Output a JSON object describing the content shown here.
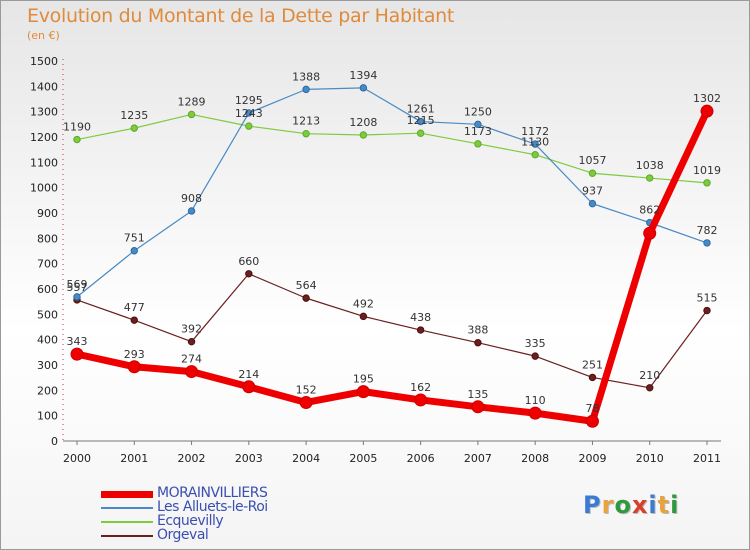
{
  "title": "Evolution du Montant de la Dette par Habitant",
  "subtitle": "(en €)",
  "logo": {
    "text": "Proxiti",
    "colors": [
      "#3a7bd5",
      "#e8a33d",
      "#2d9a3e",
      "#d8402b",
      "#3a7bd5",
      "#e8a33d",
      "#2d9a3e"
    ]
  },
  "chart_data": {
    "type": "line",
    "title": "Evolution du Montant de la Dette par Habitant",
    "ylabel": "(en €)",
    "x": [
      "2000",
      "2001",
      "2002",
      "2003",
      "2004",
      "2005",
      "2006",
      "2007",
      "2008",
      "2009",
      "2010",
      "2011"
    ],
    "ylim": [
      0,
      1500
    ],
    "yticks": [
      0,
      100,
      200,
      300,
      400,
      500,
      600,
      700,
      800,
      900,
      1000,
      1100,
      1200,
      1300,
      1400,
      1500
    ],
    "grid": false,
    "legend_position": "bottom-left",
    "series": [
      {
        "name": "MORAINVILLIERS",
        "color": "#ee0000",
        "values": [
          343,
          293,
          274,
          214,
          152,
          195,
          162,
          135,
          110,
          78,
          820,
          1302
        ],
        "labels": [
          "343",
          "293",
          "274",
          "214",
          "152",
          "195",
          "162",
          "135",
          "110",
          "78",
          "",
          "1302"
        ]
      },
      {
        "name": "Les Alluets-le-Roi",
        "color": "#4a8ac4",
        "values": [
          569,
          751,
          908,
          1295,
          1388,
          1394,
          1261,
          1250,
          1172,
          937,
          862,
          782
        ],
        "labels": [
          "569",
          "751",
          "908",
          "1295",
          "1388",
          "1394",
          "1261",
          "1250",
          "1172",
          "937",
          "862",
          "782"
        ]
      },
      {
        "name": "Ecquevilly",
        "color": "#7ecb3e",
        "values": [
          1190,
          1235,
          1289,
          1243,
          1213,
          1208,
          1215,
          1173,
          1130,
          1057,
          1038,
          1019
        ],
        "labels": [
          "1190",
          "1235",
          "1289",
          "1243",
          "1213",
          "1208",
          "1215",
          "1173",
          "1130",
          "1057",
          "1038",
          "1019"
        ]
      },
      {
        "name": "Orgeval",
        "color": "#6b1f1f",
        "values": [
          557,
          477,
          392,
          660,
          564,
          492,
          438,
          388,
          335,
          251,
          210,
          515
        ],
        "labels": [
          "557",
          "477",
          "392",
          "660",
          "564",
          "492",
          "438",
          "388",
          "335",
          "251",
          "210",
          "515"
        ]
      }
    ]
  }
}
